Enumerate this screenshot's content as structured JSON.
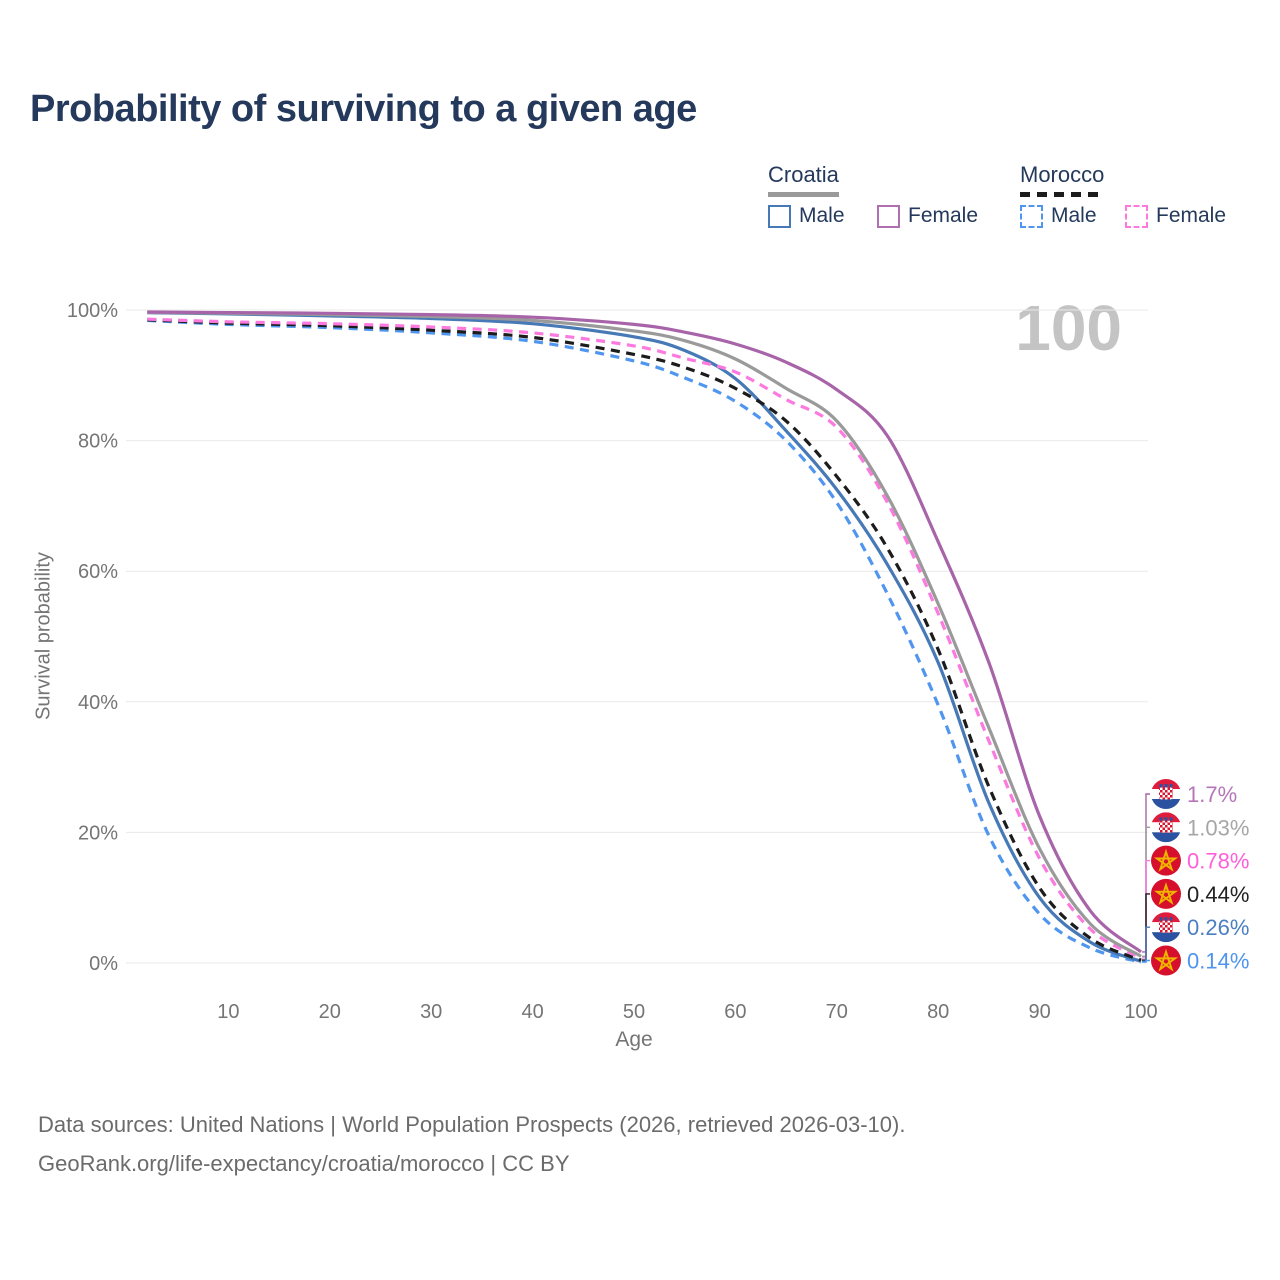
{
  "title": "Probability of surviving to a given age",
  "watermark": "100",
  "legend": {
    "groups": [
      {
        "label": "Croatia",
        "underline_color": "#9a9a9a",
        "underline_style": "solid",
        "items": [
          {
            "label": "Male",
            "color": "#4679b6",
            "dashed": false
          },
          {
            "label": "Female",
            "color": "#b06fb0",
            "dashed": false
          }
        ]
      },
      {
        "label": "Morocco",
        "underline_color": "#1c1c1c",
        "underline_style": "dashed",
        "items": [
          {
            "label": "Male",
            "color": "#5096ef",
            "dashed": true
          },
          {
            "label": "Female",
            "color": "#fc7ae0",
            "dashed": true
          }
        ]
      }
    ]
  },
  "chart_data": {
    "type": "line",
    "title": "Probability of surviving to a given age",
    "xlabel": "Age",
    "ylabel": "Survival probability",
    "xlim": [
      0,
      100
    ],
    "ylim": [
      0,
      100
    ],
    "xticks": [
      10,
      20,
      30,
      40,
      50,
      60,
      70,
      80,
      90,
      100
    ],
    "yticks": [
      0,
      20,
      40,
      60,
      80,
      100
    ],
    "grid": true,
    "x": [
      2,
      10,
      20,
      30,
      40,
      50,
      55,
      60,
      65,
      70,
      75,
      80,
      85,
      90,
      95,
      100
    ],
    "series": [
      {
        "name": "Croatia Female",
        "country": "Croatia",
        "sex": "Female",
        "flag": "croatia",
        "color": "#a864a8",
        "dashed": false,
        "end_label": "1.7%",
        "label_color": "#b476b8",
        "values": [
          99.7,
          99.6,
          99.5,
          99.3,
          98.9,
          97.8,
          96.6,
          94.8,
          92.0,
          87.8,
          80.7,
          64.5,
          46.0,
          22.5,
          8.0,
          1.7
        ]
      },
      {
        "name": "Croatia Both sexes",
        "country": "Croatia",
        "sex": "Both",
        "flag": "croatia",
        "color": "#9a9a9a",
        "dashed": false,
        "end_label": "1.03%",
        "label_color": "#a6a6a6",
        "values": [
          99.65,
          99.5,
          99.3,
          99.0,
          98.4,
          96.8,
          95.3,
          92.5,
          88.0,
          83.0,
          71.5,
          55.0,
          36.0,
          17.5,
          6.0,
          1.03
        ]
      },
      {
        "name": "Morocco Female",
        "country": "Morocco",
        "sex": "Female",
        "flag": "morocco",
        "color": "#fc7ae0",
        "dashed": true,
        "end_label": "0.78%",
        "label_color": "#ff5fd8",
        "values": [
          98.6,
          98.2,
          97.9,
          97.4,
          96.5,
          94.5,
          92.6,
          90.5,
          86.3,
          82.0,
          70.5,
          53.5,
          34.0,
          16.0,
          5.2,
          0.78
        ]
      },
      {
        "name": "Morocco Both sexes",
        "country": "Morocco",
        "sex": "Both",
        "flag": "morocco",
        "color": "#1c1c1c",
        "dashed": true,
        "end_label": "0.44%",
        "label_color": "#222222",
        "values": [
          98.5,
          98.0,
          97.6,
          96.9,
          95.8,
          93.2,
          91.2,
          88.0,
          83.0,
          74.5,
          63.5,
          48.0,
          27.0,
          11.5,
          3.8,
          0.44
        ]
      },
      {
        "name": "Croatia Male",
        "country": "Croatia",
        "sex": "Male",
        "flag": "croatia",
        "color": "#4679b6",
        "dashed": false,
        "end_label": "0.26%",
        "label_color": "#4b7fc0",
        "values": [
          99.6,
          99.4,
          99.1,
          98.7,
          97.9,
          95.9,
          93.8,
          89.5,
          81.5,
          72.5,
          61.0,
          46.0,
          24.5,
          10.0,
          3.2,
          0.26
        ]
      },
      {
        "name": "Morocco Male",
        "country": "Morocco",
        "sex": "Male",
        "flag": "morocco",
        "color": "#5096ef",
        "dashed": true,
        "end_label": "0.14%",
        "label_color": "#4f94ee",
        "values": [
          98.4,
          97.8,
          97.3,
          96.5,
          95.2,
          92.2,
          89.6,
          86.0,
          80.0,
          70.5,
          56.5,
          39.5,
          19.5,
          7.5,
          2.3,
          0.14
        ]
      }
    ]
  },
  "footer": {
    "line1": "Data sources: United Nations | World Population Prospects (2026, retrieved 2026-03-10).",
    "line2": "GeoRank.org/life-expectancy/croatia/morocco | CC BY"
  }
}
